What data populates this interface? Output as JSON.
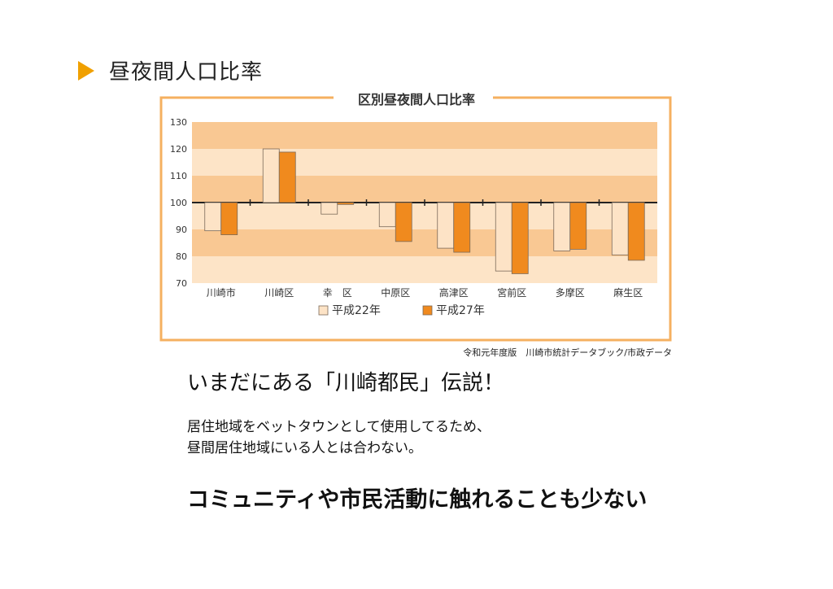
{
  "slide": {
    "title": "昼夜間人口比率",
    "headline": "いまだにある「川崎都民」伝説！",
    "body_lines": [
      "居住地域をベットタウンとして使用してるため、",
      "昼間居住地域にいる人とは合わない。"
    ],
    "conclusion": "コミュニティや市民活動に触れることも少ない"
  },
  "source_note": "令和元年度版　川崎市統計データブック/市政データ",
  "colors": {
    "accent": "#f0a000",
    "series1": "#fde3c6",
    "series2": "#f08a1e",
    "band_dark": "#f9c893",
    "band_light": "#fde4c7",
    "frame": "#f5b060"
  },
  "chart_data": {
    "type": "bar",
    "title": "区別昼夜間人口比率",
    "categories": [
      "川崎市",
      "川崎区",
      "幸　区",
      "中原区",
      "高津区",
      "宮前区",
      "多摩区",
      "麻生区"
    ],
    "series": [
      {
        "name": "平成22年",
        "values": [
          89.5,
          120.0,
          95.7,
          91.0,
          83.0,
          74.5,
          82.0,
          80.5
        ]
      },
      {
        "name": "平成27年",
        "values": [
          88.0,
          118.8,
          99.3,
          85.5,
          81.5,
          73.5,
          82.6,
          78.5
        ]
      }
    ],
    "baseline": 100,
    "ylim": [
      70,
      130
    ],
    "yticks": [
      70,
      80,
      90,
      100,
      110,
      120,
      130
    ],
    "legend_position": "bottom"
  }
}
